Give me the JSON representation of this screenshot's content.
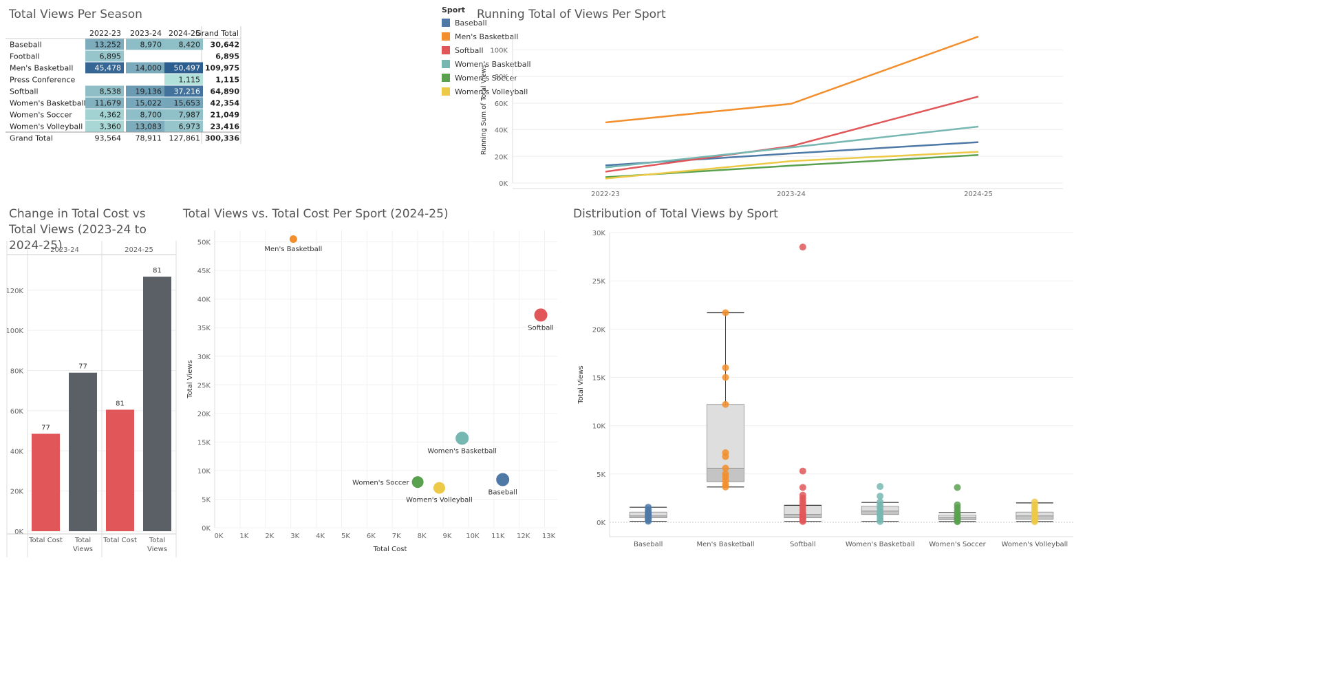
{
  "titles": {
    "table": "Total Views Per Season",
    "running": "Running Total of Views Per Sport",
    "change": "Change in Total Cost vs Total Views (2023-24 to 2024-25)",
    "scatter": "Total Views vs. Total Cost Per Sport (2024-25)",
    "box": "Distribution of Total Views by Sport"
  },
  "legend": {
    "title": "Sport",
    "items": [
      {
        "label": "Baseball",
        "color": "#4e79a7"
      },
      {
        "label": "Men's Basketball",
        "color": "#f28e2b"
      },
      {
        "label": "Softball",
        "color": "#e15759"
      },
      {
        "label": "Women's Basketball",
        "color": "#76b7b2"
      },
      {
        "label": "Women's Soccer",
        "color": "#59a14f"
      },
      {
        "label": "Women's Volleyball",
        "color": "#edc948"
      }
    ]
  },
  "chart_data": [
    {
      "type": "table",
      "title": "Total Views Per Season",
      "columns": [
        "",
        "2022-23",
        "2023-24",
        "2024-25",
        "Grand Total"
      ],
      "rows": [
        {
          "label": "Baseball",
          "values": [
            13252,
            8970,
            8420
          ],
          "total": 30642
        },
        {
          "label": "Football",
          "values": [
            6895,
            null,
            null
          ],
          "total": 6895
        },
        {
          "label": "Men's Basketball",
          "values": [
            45478,
            14000,
            50497
          ],
          "total": 109975
        },
        {
          "label": "Press Conference",
          "values": [
            null,
            null,
            1115
          ],
          "total": 1115
        },
        {
          "label": "Softball",
          "values": [
            8538,
            19136,
            37216
          ],
          "total": 64890
        },
        {
          "label": "Women's Basketball",
          "values": [
            11679,
            15022,
            15653
          ],
          "total": 42354
        },
        {
          "label": "Women's Soccer",
          "values": [
            4362,
            8700,
            7987
          ],
          "total": 21049
        },
        {
          "label": "Women's Volleyball",
          "values": [
            3360,
            13083,
            6973
          ],
          "total": 23416
        }
      ],
      "grand_total": {
        "label": "Grand Total",
        "values": [
          93564,
          78911,
          127861
        ],
        "total": 300336
      }
    },
    {
      "type": "line",
      "title": "Running Total of Views Per Sport",
      "xlabel": "",
      "ylabel": "Running Sum of Total Views",
      "categories": [
        "2022-23",
        "2023-24",
        "2024-25"
      ],
      "ylim": [
        0,
        110000
      ],
      "yticks": [
        0,
        20000,
        40000,
        60000,
        80000,
        100000
      ],
      "ytick_labels": [
        "0K",
        "20K",
        "40K",
        "60K",
        "80K",
        "100K"
      ],
      "series": [
        {
          "name": "Baseball",
          "color": "#4e79a7",
          "values": [
            13252,
            22222,
            30642
          ]
        },
        {
          "name": "Men's Basketball",
          "color": "#f28e2b",
          "values": [
            45478,
            59478,
            109975
          ]
        },
        {
          "name": "Softball",
          "color": "#e15759",
          "values": [
            8538,
            27674,
            64890
          ]
        },
        {
          "name": "Women's Basketball",
          "color": "#76b7b2",
          "values": [
            11679,
            26701,
            42354
          ]
        },
        {
          "name": "Women's Soccer",
          "color": "#59a14f",
          "values": [
            4362,
            13062,
            21049
          ]
        },
        {
          "name": "Women's Volleyball",
          "color": "#edc948",
          "values": [
            3360,
            16443,
            23416
          ]
        }
      ]
    },
    {
      "type": "bar",
      "title": "Change in Total Cost vs Total Views (2023-24 to 2024-25)",
      "panels": [
        "2023-24",
        "2024-25"
      ],
      "categories": [
        "Total Cost",
        "Total Views"
      ],
      "category_labels": [
        [
          "Total Cost"
        ],
        [
          "Total",
          "Views"
        ]
      ],
      "ylim": [
        0,
        135000
      ],
      "yticks": [
        0,
        20000,
        40000,
        60000,
        80000,
        100000,
        120000
      ],
      "ytick_labels": [
        "0K",
        "20K",
        "40K",
        "60K",
        "80K",
        "100K",
        "120K"
      ],
      "values": [
        [
          48500,
          78911
        ],
        [
          60500,
          126746
        ]
      ],
      "data_labels": [
        [
          "77",
          "77"
        ],
        [
          "81",
          "81"
        ]
      ],
      "colors": [
        "#e15759",
        "#5b5f66"
      ]
    },
    {
      "type": "scatter",
      "title": "Total Views vs. Total Cost Per Sport (2024-25)",
      "xlabel": "Total Cost",
      "ylabel": "Total Views",
      "xlim": [
        0,
        13500
      ],
      "ylim": [
        0,
        52000
      ],
      "xticks": [
        0,
        1000,
        2000,
        3000,
        4000,
        5000,
        6000,
        7000,
        8000,
        9000,
        10000,
        11000,
        12000,
        13000
      ],
      "xtick_labels": [
        "0K",
        "1K",
        "2K",
        "3K",
        "4K",
        "5K",
        "6K",
        "7K",
        "8K",
        "9K",
        "10K",
        "11K",
        "12K",
        "13K"
      ],
      "yticks": [
        0,
        5000,
        10000,
        15000,
        20000,
        25000,
        30000,
        35000,
        40000,
        45000,
        50000
      ],
      "ytick_labels": [
        "0K",
        "5K",
        "10K",
        "15K",
        "20K",
        "25K",
        "30K",
        "35K",
        "40K",
        "45K",
        "50K"
      ],
      "points": [
        {
          "label": "Men's Basketball",
          "x": 3100,
          "y": 50497,
          "size": 1,
          "color": "#f28e2b",
          "label_pos": "below"
        },
        {
          "label": "Softball",
          "x": 12850,
          "y": 37216,
          "size": 3,
          "color": "#e15759",
          "label_pos": "below"
        },
        {
          "label": "Women's Basketball",
          "x": 9750,
          "y": 15653,
          "size": 3,
          "color": "#76b7b2",
          "label_pos": "below"
        },
        {
          "label": "Women's Soccer",
          "x": 8000,
          "y": 7987,
          "size": 2.5,
          "color": "#59a14f",
          "label_pos": "left"
        },
        {
          "label": "Women's Volleyball",
          "x": 8850,
          "y": 6973,
          "size": 2.5,
          "color": "#edc948",
          "label_pos": "below"
        },
        {
          "label": "Baseball",
          "x": 11350,
          "y": 8420,
          "size": 3,
          "color": "#4e79a7",
          "label_pos": "below"
        }
      ]
    },
    {
      "type": "scatter",
      "title": "Distribution of Total Views by Sport",
      "xlabel": "",
      "ylabel": "Total Views",
      "ylim": [
        -1500,
        30000
      ],
      "yticks": [
        0,
        5000,
        10000,
        15000,
        20000,
        25000,
        30000
      ],
      "ytick_labels": [
        "0K",
        "5K",
        "10K",
        "15K",
        "20K",
        "25K",
        "30K"
      ],
      "categories": [
        "Baseball",
        "Men's Basketball",
        "Softball",
        "Women's Basketball",
        "Women's Soccer",
        "Women's Volleyball"
      ],
      "colors": [
        "#4e79a7",
        "#f28e2b",
        "#e15759",
        "#76b7b2",
        "#59a14f",
        "#edc948"
      ],
      "boxes": [
        {
          "min": 100,
          "q1": 450,
          "median": 650,
          "q3": 1050,
          "max": 1550
        },
        {
          "min": 3650,
          "q1": 4200,
          "median": 5600,
          "q3": 12200,
          "max": 21700
        },
        {
          "min": 80,
          "q1": 450,
          "median": 800,
          "q3": 1750,
          "max": 1750
        },
        {
          "min": 80,
          "q1": 800,
          "median": 1150,
          "q3": 1650,
          "max": 2050
        },
        {
          "min": 60,
          "q1": 250,
          "median": 450,
          "q3": 750,
          "max": 1000
        },
        {
          "min": 60,
          "q1": 300,
          "median": 650,
          "q3": 1050,
          "max": 2000
        }
      ],
      "points": [
        [
          100,
          250,
          400,
          500,
          650,
          750,
          850,
          950,
          1100,
          1300,
          1550
        ],
        [
          3650,
          3900,
          4300,
          4700,
          5000,
          5600,
          6800,
          7200,
          12200,
          15000,
          16000,
          21700
        ],
        [
          80,
          200,
          350,
          500,
          650,
          800,
          1000,
          1300,
          1600,
          1900,
          2200,
          2500,
          2800,
          3600,
          5300,
          28500
        ],
        [
          80,
          300,
          600,
          800,
          1000,
          1200,
          1500,
          1800,
          2100,
          2700,
          3700
        ],
        [
          60,
          150,
          300,
          400,
          550,
          700,
          900,
          1200,
          1500,
          1800,
          3600
        ],
        [
          60,
          200,
          350,
          500,
          700,
          900,
          1200,
          1500,
          1800,
          2100
        ]
      ]
    }
  ]
}
